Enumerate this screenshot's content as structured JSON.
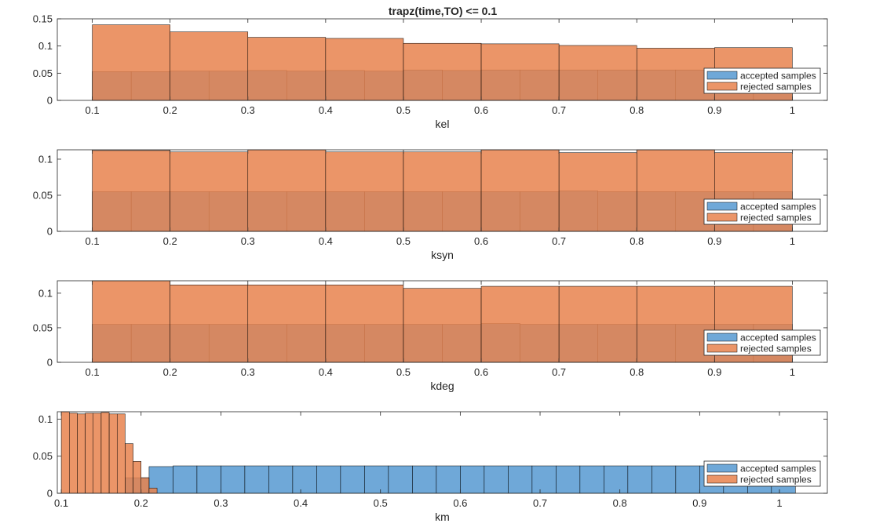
{
  "figure": {
    "title": "trapz(time,TO) <= 0.1"
  },
  "colors": {
    "accepted": "#4f95d0",
    "rejected": "#e8834e",
    "overlap": "#a9674b",
    "edge": "#000000"
  },
  "chart_data": [
    {
      "type": "histogram",
      "xlabel": "kel",
      "xlim": [
        0.055,
        1.045
      ],
      "ylim": [
        0,
        0.15
      ],
      "xticks": [
        "0.1",
        "0.2",
        "0.3",
        "0.4",
        "0.5",
        "0.6",
        "0.7",
        "0.8",
        "0.9",
        "1"
      ],
      "yticks": [
        "0",
        "0.05",
        "0.1",
        "0.15"
      ],
      "legend": {
        "position": "bottom-right",
        "entries": [
          "accepted samples",
          "rejected samples"
        ]
      },
      "series": [
        {
          "name": "accepted samples",
          "edges": [
            0.1,
            0.15,
            0.2,
            0.25,
            0.3,
            0.35,
            0.4,
            0.45,
            0.5,
            0.55,
            0.6,
            0.65,
            0.7,
            0.75,
            0.8,
            0.85,
            0.9,
            0.95,
            1.0
          ],
          "values": [
            0.053,
            0.053,
            0.054,
            0.054,
            0.055,
            0.054,
            0.055,
            0.054,
            0.056,
            0.055,
            0.056,
            0.056,
            0.056,
            0.056,
            0.056,
            0.056,
            0.056,
            0.056
          ]
        },
        {
          "name": "rejected samples",
          "edges": [
            0.1,
            0.2,
            0.3,
            0.4,
            0.5,
            0.6,
            0.7,
            0.8,
            0.9,
            1.0
          ],
          "values": [
            0.139,
            0.126,
            0.116,
            0.114,
            0.105,
            0.104,
            0.101,
            0.096,
            0.097
          ]
        }
      ]
    },
    {
      "type": "histogram",
      "xlabel": "ksyn",
      "xlim": [
        0.055,
        1.045
      ],
      "ylim": [
        0,
        0.113
      ],
      "xticks": [
        "0.1",
        "0.2",
        "0.3",
        "0.4",
        "0.5",
        "0.6",
        "0.7",
        "0.8",
        "0.9",
        "1"
      ],
      "yticks": [
        "0",
        "0.05",
        "0.1"
      ],
      "legend": {
        "position": "bottom-right",
        "entries": [
          "accepted samples",
          "rejected samples"
        ]
      },
      "series": [
        {
          "name": "accepted samples",
          "edges": [
            0.1,
            0.15,
            0.2,
            0.25,
            0.3,
            0.35,
            0.4,
            0.45,
            0.5,
            0.55,
            0.6,
            0.65,
            0.7,
            0.75,
            0.8,
            0.85,
            0.9,
            0.95,
            1.0
          ],
          "values": [
            0.055,
            0.055,
            0.055,
            0.055,
            0.055,
            0.055,
            0.055,
            0.055,
            0.055,
            0.055,
            0.055,
            0.055,
            0.056,
            0.055,
            0.055,
            0.055,
            0.055,
            0.055
          ]
        },
        {
          "name": "rejected samples",
          "edges": [
            0.1,
            0.2,
            0.3,
            0.4,
            0.5,
            0.6,
            0.7,
            0.8,
            0.9,
            1.0
          ],
          "values": [
            0.112,
            0.11,
            0.113,
            0.11,
            0.11,
            0.113,
            0.109,
            0.113,
            0.109
          ]
        }
      ]
    },
    {
      "type": "histogram",
      "xlabel": "kdeg",
      "xlim": [
        0.055,
        1.045
      ],
      "ylim": [
        0,
        0.118
      ],
      "xticks": [
        "0.1",
        "0.2",
        "0.3",
        "0.4",
        "0.5",
        "0.6",
        "0.7",
        "0.8",
        "0.9",
        "1"
      ],
      "yticks": [
        "0",
        "0.05",
        "0.1"
      ],
      "legend": {
        "position": "bottom-right",
        "entries": [
          "accepted samples",
          "rejected samples"
        ]
      },
      "series": [
        {
          "name": "accepted samples",
          "edges": [
            0.1,
            0.15,
            0.2,
            0.25,
            0.3,
            0.35,
            0.4,
            0.45,
            0.5,
            0.55,
            0.6,
            0.65,
            0.7,
            0.75,
            0.8,
            0.85,
            0.9,
            0.95,
            1.0
          ],
          "values": [
            0.055,
            0.055,
            0.055,
            0.055,
            0.055,
            0.055,
            0.055,
            0.055,
            0.055,
            0.055,
            0.056,
            0.055,
            0.055,
            0.055,
            0.055,
            0.055,
            0.055,
            0.055
          ]
        },
        {
          "name": "rejected samples",
          "edges": [
            0.1,
            0.2,
            0.3,
            0.4,
            0.5,
            0.6,
            0.7,
            0.8,
            0.9,
            1.0
          ],
          "values": [
            0.118,
            0.112,
            0.112,
            0.112,
            0.107,
            0.11,
            0.11,
            0.11,
            0.11
          ]
        }
      ]
    },
    {
      "type": "histogram",
      "xlabel": "km",
      "xlim": [
        0.095,
        1.06
      ],
      "ylim": [
        0,
        0.11
      ],
      "xticks": [
        "0.1",
        "0.2",
        "0.3",
        "0.4",
        "0.5",
        "0.6",
        "0.7",
        "0.8",
        "0.9",
        "1"
      ],
      "yticks": [
        "0",
        "0.05",
        "0.1"
      ],
      "legend": {
        "position": "bottom-right",
        "entries": [
          "accepted samples",
          "rejected samples"
        ]
      },
      "series": [
        {
          "name": "accepted samples",
          "edges": [
            0.18,
            0.21,
            0.24,
            0.27,
            0.3,
            0.33,
            0.36,
            0.39,
            0.42,
            0.45,
            0.48,
            0.51,
            0.54,
            0.57,
            0.6,
            0.63,
            0.66,
            0.69,
            0.72,
            0.75,
            0.78,
            0.81,
            0.84,
            0.87,
            0.9,
            0.93,
            0.96,
            0.99,
            1.02
          ],
          "values": [
            0.021,
            0.036,
            0.037,
            0.037,
            0.037,
            0.037,
            0.037,
            0.037,
            0.037,
            0.037,
            0.037,
            0.037,
            0.037,
            0.037,
            0.037,
            0.037,
            0.037,
            0.037,
            0.037,
            0.037,
            0.037,
            0.037,
            0.037,
            0.037,
            0.037,
            0.037,
            0.037,
            0.037
          ]
        },
        {
          "name": "rejected samples",
          "edges": [
            0.1,
            0.11,
            0.12,
            0.13,
            0.14,
            0.15,
            0.16,
            0.17,
            0.18,
            0.19,
            0.2,
            0.21,
            0.22
          ],
          "values": [
            0.11,
            0.108,
            0.107,
            0.108,
            0.108,
            0.109,
            0.107,
            0.107,
            0.067,
            0.043,
            0.021,
            0.007
          ]
        }
      ]
    }
  ]
}
